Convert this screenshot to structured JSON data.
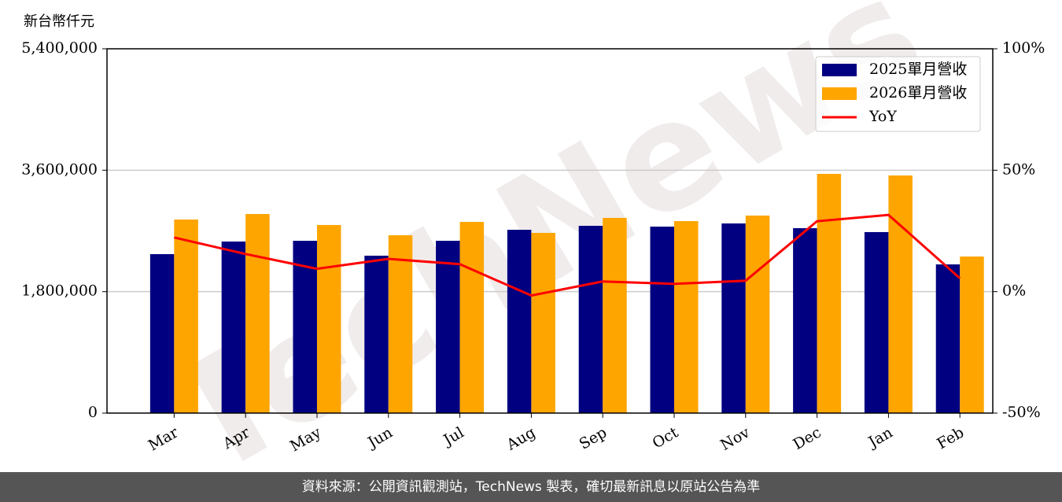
{
  "chart_data": {
    "type": "bar",
    "y_label": "新台幣仟元",
    "watermark": "TechNews",
    "categories": [
      "Mar",
      "Apr",
      "May",
      "Jun",
      "Jul",
      "Aug",
      "Sep",
      "Oct",
      "Nov",
      "Dec",
      "Jan",
      "Feb"
    ],
    "series": [
      {
        "name": "2025單月營收",
        "color": "#000080",
        "values": [
          2356000,
          2543000,
          2554000,
          2333000,
          2554000,
          2717000,
          2776000,
          2764000,
          2811000,
          2741000,
          2683000,
          2204000
        ]
      },
      {
        "name": "2026單月營收",
        "color": "#ffa500",
        "values": [
          2869000,
          2951000,
          2788000,
          2636000,
          2834000,
          2671000,
          2893000,
          2846000,
          2928000,
          3546000,
          3522000,
          2321000
        ]
      },
      {
        "name": "YoY",
        "type": "line",
        "axis": "y2",
        "color": "#ff0000",
        "values": [
          22.3,
          15.5,
          9.4,
          13.5,
          11.3,
          -1.6,
          4.2,
          3.2,
          4.5,
          29.0,
          31.6,
          5.5
        ]
      }
    ],
    "ylim": [
      0,
      5400000
    ],
    "yticks": [
      0,
      {
        "value": 1800000,
        "label": "1,800,000"
      },
      {
        "value": 3600000,
        "label": "3,600,000"
      },
      {
        "value": 5400000,
        "label": "5,400,000"
      }
    ],
    "y2lim": [
      -50,
      100
    ],
    "y2ticks": [
      {
        "value": -50,
        "label": "-50%"
      },
      {
        "value": 0,
        "label": "0%"
      },
      {
        "value": 50,
        "label": "50%"
      },
      {
        "value": 100,
        "label": "100%"
      }
    ],
    "grid": true,
    "legend": "upper right"
  },
  "footer": "資料來源：公開資訊觀測站，TechNews 製表，確切最新訊息以原站公告為準"
}
